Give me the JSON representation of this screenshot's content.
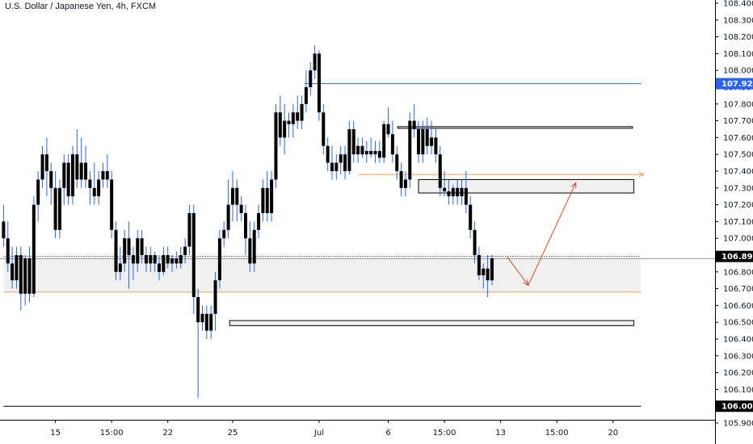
{
  "header": {
    "symbol": "U.S. Dollar / Japanese Yen, 4h, FXCM"
  },
  "colors": {
    "candle": "#000000",
    "wick": "#2962ff",
    "zone_fill": "#f0f0f0",
    "zone_border": "#000000",
    "blue_level": "#2962ff",
    "orange_level": "#e8a25a",
    "red_path": "#d9472b",
    "axis_line": "#000000",
    "tag_black": "#000000",
    "tag_blue": "#2962ff"
  },
  "chart_data": {
    "type": "candlestick",
    "ylim": [
      105.86,
      108.44
    ],
    "y_ticks": [
      "108.400",
      "108.300",
      "108.200",
      "108.100",
      "108.000",
      "107.900",
      "107.800",
      "107.700",
      "107.600",
      "107.500",
      "107.400",
      "107.300",
      "107.200",
      "107.100",
      "107.000",
      "106.900",
      "106.800",
      "106.700",
      "106.600",
      "106.500",
      "106.400",
      "106.300",
      "106.200",
      "106.100",
      "106.000",
      "105.900"
    ],
    "x_ticks": [
      {
        "label": "15",
        "bar": 12
      },
      {
        "label": "15:00",
        "bar": 25
      },
      {
        "label": "22",
        "bar": 38
      },
      {
        "label": "25",
        "bar": 53
      },
      {
        "label": "Jul",
        "bar": 73
      },
      {
        "label": "6",
        "bar": 89
      },
      {
        "label": "15:00",
        "bar": 102
      },
      {
        "label": "13",
        "bar": 115
      },
      {
        "label": "15:00",
        "bar": 128
      },
      {
        "label": "20",
        "bar": 141
      }
    ],
    "price_tags": [
      {
        "value": "107.921",
        "style": "blue"
      },
      {
        "value": "106.892",
        "style": "black"
      },
      {
        "value": "106.000",
        "style": "black"
      }
    ],
    "candles": [
      [
        107.1,
        107.2,
        106.95,
        107.0
      ],
      [
        107.0,
        107.1,
        106.8,
        106.85
      ],
      [
        106.85,
        106.95,
        106.7,
        106.75
      ],
      [
        106.75,
        106.95,
        106.7,
        106.9
      ],
      [
        106.9,
        106.95,
        106.57,
        106.67
      ],
      [
        106.67,
        106.9,
        106.6,
        106.88
      ],
      [
        106.88,
        106.95,
        106.62,
        106.67
      ],
      [
        106.67,
        107.25,
        106.65,
        107.2
      ],
      [
        107.2,
        107.4,
        107.1,
        107.35
      ],
      [
        107.35,
        107.55,
        107.3,
        107.5
      ],
      [
        107.5,
        107.6,
        107.25,
        107.4
      ],
      [
        107.4,
        107.45,
        107.2,
        107.3
      ],
      [
        107.3,
        107.4,
        107.0,
        107.05
      ],
      [
        107.05,
        107.35,
        107.0,
        107.3
      ],
      [
        107.3,
        107.5,
        107.2,
        107.45
      ],
      [
        107.45,
        107.5,
        107.2,
        107.25
      ],
      [
        107.25,
        107.55,
        107.2,
        107.5
      ],
      [
        107.5,
        107.65,
        107.3,
        107.35
      ],
      [
        107.35,
        107.6,
        107.3,
        107.45
      ],
      [
        107.45,
        107.55,
        107.3,
        107.35
      ],
      [
        107.35,
        107.4,
        107.2,
        107.3
      ],
      [
        107.3,
        107.45,
        107.2,
        107.25
      ],
      [
        107.25,
        107.4,
        107.2,
        107.35
      ],
      [
        107.35,
        107.45,
        107.3,
        107.4
      ],
      [
        107.4,
        107.5,
        107.3,
        107.35
      ],
      [
        107.35,
        107.4,
        107.0,
        107.05
      ],
      [
        107.05,
        107.1,
        106.75,
        106.8
      ],
      [
        106.8,
        106.95,
        106.75,
        106.85
      ],
      [
        106.85,
        107.05,
        106.8,
        107.0
      ],
      [
        107.0,
        107.1,
        106.7,
        106.9
      ],
      [
        106.9,
        106.95,
        106.75,
        106.85
      ],
      [
        106.85,
        107.05,
        106.8,
        107.0
      ],
      [
        107.0,
        107.05,
        106.85,
        106.9
      ],
      [
        106.9,
        106.95,
        106.8,
        106.85
      ],
      [
        106.85,
        106.95,
        106.8,
        106.9
      ],
      [
        106.9,
        106.92,
        106.8,
        106.85
      ],
      [
        106.85,
        106.9,
        106.75,
        106.8
      ],
      [
        106.8,
        106.95,
        106.78,
        106.9
      ],
      [
        106.9,
        106.95,
        106.82,
        106.85
      ],
      [
        106.85,
        106.9,
        106.8,
        106.88
      ],
      [
        106.88,
        106.92,
        106.82,
        106.85
      ],
      [
        106.85,
        106.95,
        106.82,
        106.9
      ],
      [
        106.9,
        107.0,
        106.85,
        106.95
      ],
      [
        106.95,
        107.2,
        106.9,
        107.15
      ],
      [
        107.15,
        107.2,
        106.55,
        106.65
      ],
      [
        106.65,
        106.7,
        106.05,
        106.5
      ],
      [
        106.5,
        106.6,
        106.45,
        106.55
      ],
      [
        106.55,
        106.6,
        106.4,
        106.45
      ],
      [
        106.45,
        106.6,
        106.4,
        106.55
      ],
      [
        106.55,
        106.8,
        106.45,
        106.75
      ],
      [
        106.75,
        107.05,
        106.7,
        107.0
      ],
      [
        107.0,
        107.1,
        106.95,
        107.05
      ],
      [
        107.05,
        107.35,
        107.0,
        107.2
      ],
      [
        107.2,
        107.4,
        107.1,
        107.3
      ],
      [
        107.3,
        107.35,
        107.1,
        107.2
      ],
      [
        107.2,
        107.25,
        107.1,
        107.15
      ],
      [
        107.15,
        107.2,
        106.9,
        107.0
      ],
      [
        107.0,
        107.1,
        106.8,
        106.85
      ],
      [
        106.85,
        107.1,
        106.8,
        107.05
      ],
      [
        107.05,
        107.2,
        107.0,
        107.15
      ],
      [
        107.15,
        107.35,
        107.1,
        107.3
      ],
      [
        107.3,
        107.4,
        107.1,
        107.15
      ],
      [
        107.15,
        107.4,
        107.1,
        107.35
      ],
      [
        107.35,
        107.8,
        107.3,
        107.75
      ],
      [
        107.75,
        107.85,
        107.55,
        107.6
      ],
      [
        107.6,
        107.8,
        107.5,
        107.7
      ],
      [
        107.7,
        107.75,
        107.6,
        107.68
      ],
      [
        107.68,
        107.8,
        107.6,
        107.75
      ],
      [
        107.75,
        107.85,
        107.65,
        107.7
      ],
      [
        107.7,
        107.85,
        107.65,
        107.8
      ],
      [
        107.8,
        108.0,
        107.75,
        107.9
      ],
      [
        107.9,
        108.05,
        107.85,
        108.0
      ],
      [
        108.0,
        108.15,
        107.95,
        108.1
      ],
      [
        108.1,
        108.12,
        107.7,
        107.75
      ],
      [
        107.75,
        107.8,
        107.5,
        107.55
      ],
      [
        107.55,
        107.6,
        107.4,
        107.45
      ],
      [
        107.45,
        107.55,
        107.35,
        107.4
      ],
      [
        107.4,
        107.5,
        107.35,
        107.45
      ],
      [
        107.45,
        107.55,
        107.38,
        107.5
      ],
      [
        107.5,
        107.55,
        107.35,
        107.4
      ],
      [
        107.4,
        107.7,
        107.38,
        107.65
      ],
      [
        107.65,
        107.7,
        107.45,
        107.5
      ],
      [
        107.5,
        107.6,
        107.45,
        107.55
      ],
      [
        107.55,
        107.6,
        107.48,
        107.5
      ],
      [
        107.5,
        107.58,
        107.45,
        107.52
      ],
      [
        107.52,
        107.6,
        107.48,
        107.5
      ],
      [
        107.5,
        107.58,
        107.45,
        107.52
      ],
      [
        107.52,
        107.58,
        107.45,
        107.48
      ],
      [
        107.48,
        107.7,
        107.45,
        107.68
      ],
      [
        107.68,
        107.78,
        107.6,
        107.62
      ],
      [
        107.62,
        107.7,
        107.45,
        107.5
      ],
      [
        107.5,
        107.55,
        107.35,
        107.4
      ],
      [
        107.4,
        107.45,
        107.25,
        107.3
      ],
      [
        107.3,
        107.4,
        107.25,
        107.35
      ],
      [
        107.35,
        107.75,
        107.3,
        107.7
      ],
      [
        107.7,
        107.8,
        107.6,
        107.65
      ],
      [
        107.65,
        107.7,
        107.45,
        107.5
      ],
      [
        107.5,
        107.7,
        107.45,
        107.65
      ],
      [
        107.65,
        107.72,
        107.5,
        107.55
      ],
      [
        107.55,
        107.7,
        107.5,
        107.6
      ],
      [
        107.6,
        107.65,
        107.45,
        107.5
      ],
      [
        107.5,
        107.55,
        107.25,
        107.3
      ],
      [
        107.3,
        107.4,
        107.25,
        107.28
      ],
      [
        107.28,
        107.35,
        107.2,
        107.25
      ],
      [
        107.25,
        107.32,
        107.2,
        107.3
      ],
      [
        107.3,
        107.35,
        107.2,
        107.25
      ],
      [
        107.25,
        107.35,
        107.2,
        107.3
      ],
      [
        107.3,
        107.4,
        107.15,
        107.2
      ],
      [
        107.2,
        107.25,
        107.0,
        107.05
      ],
      [
        107.05,
        107.1,
        106.85,
        106.9
      ],
      [
        106.9,
        106.95,
        106.75,
        106.78
      ],
      [
        106.78,
        106.85,
        106.7,
        106.82
      ],
      [
        106.82,
        106.9,
        106.65,
        106.75
      ],
      [
        106.75,
        106.9,
        106.72,
        106.88
      ]
    ],
    "zones": [
      {
        "x1": 0,
        "x2": 147.4,
        "top": 106.88,
        "bottom": 106.68,
        "frame": "none"
      },
      {
        "x1": 91.2,
        "x2": 145.5,
        "top": 107.665,
        "bottom": 107.655,
        "frame": "box"
      },
      {
        "x1": 96,
        "x2": 145.8,
        "top": 107.35,
        "bottom": 107.27,
        "frame": "box"
      },
      {
        "x1": 52.3,
        "x2": 145.8,
        "top": 106.51,
        "bottom": 106.48,
        "frame": "box"
      }
    ],
    "levels": [
      {
        "value": 107.921,
        "x1": 69.5,
        "x2": 147.5,
        "color": "blue"
      },
      {
        "value": 107.38,
        "x1": 82,
        "x2": 148.1,
        "color": "orange",
        "arrow": true
      },
      {
        "value": 106.68,
        "x1": 0,
        "x2": 147.5,
        "color": "orange"
      },
      {
        "value": 106.892,
        "x1": 0,
        "x2": 147.5,
        "color": "black",
        "dotted": true
      },
      {
        "value": 106.0,
        "x1": 0,
        "x2": 147.5,
        "color": "black"
      }
    ],
    "projection": [
      [
        116.5,
        106.89
      ],
      [
        121.4,
        106.72
      ],
      [
        132.4,
        107.33
      ]
    ]
  }
}
